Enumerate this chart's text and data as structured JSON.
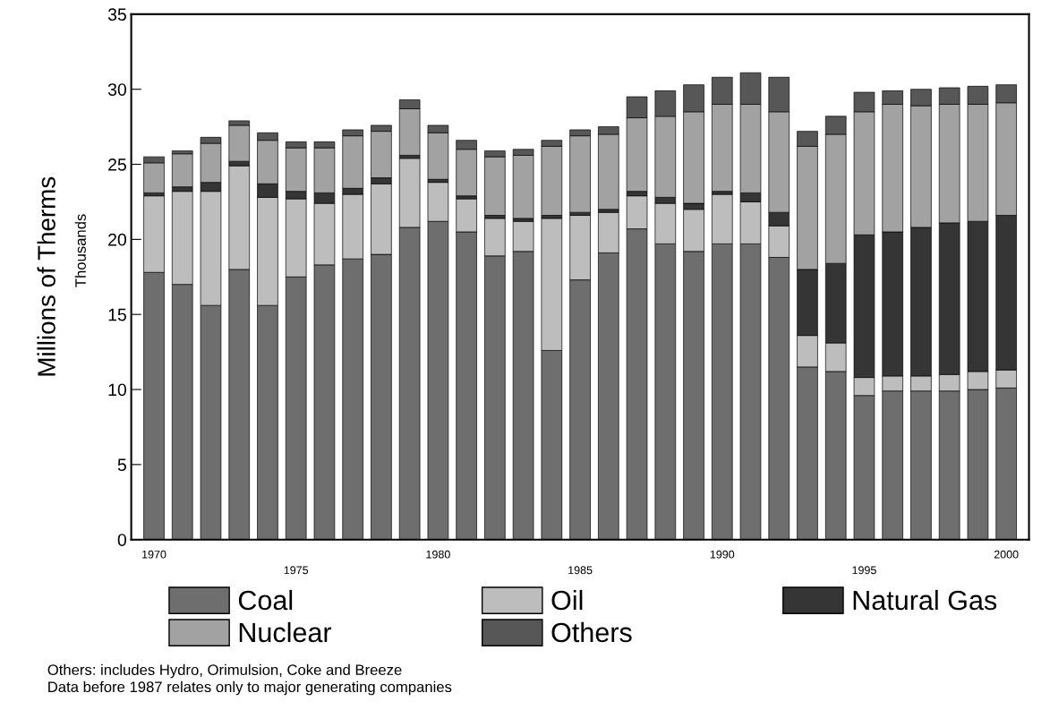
{
  "chart_data": {
    "type": "bar",
    "stacked": true,
    "categories": [
      "1970",
      null,
      null,
      null,
      null,
      "1975",
      null,
      null,
      null,
      null,
      "1980",
      null,
      null,
      null,
      null,
      "1985",
      null,
      null,
      null,
      null,
      "1990",
      null,
      null,
      null,
      null,
      "1995",
      null,
      null,
      null,
      null,
      "2000"
    ],
    "series": [
      {
        "name": "Coal",
        "color": "#6e6e6e",
        "values": [
          17.8,
          17.0,
          15.6,
          18.0,
          15.6,
          17.5,
          18.3,
          18.7,
          19.0,
          20.8,
          21.2,
          20.5,
          18.9,
          19.2,
          12.6,
          17.3,
          19.1,
          20.7,
          19.7,
          19.2,
          19.7,
          19.7,
          18.8,
          11.5,
          11.2,
          9.6,
          9.9,
          9.9,
          9.9,
          10.0,
          10.1
        ]
      },
      {
        "name": "Oil",
        "color": "#bdbdbd",
        "values": [
          5.1,
          6.2,
          7.6,
          6.9,
          7.2,
          5.2,
          4.1,
          4.3,
          4.7,
          4.6,
          2.6,
          2.2,
          2.5,
          2.0,
          8.8,
          4.3,
          2.7,
          2.2,
          2.7,
          2.8,
          3.3,
          2.8,
          2.1,
          2.1,
          1.9,
          1.2,
          1.0,
          1.0,
          1.1,
          1.2,
          1.2
        ]
      },
      {
        "name": "Natural Gas",
        "color": "#353535",
        "values": [
          0.2,
          0.3,
          0.6,
          0.3,
          0.9,
          0.5,
          0.7,
          0.4,
          0.4,
          0.2,
          0.2,
          0.2,
          0.2,
          0.2,
          0.2,
          0.2,
          0.2,
          0.3,
          0.4,
          0.4,
          0.2,
          0.6,
          0.9,
          4.4,
          5.3,
          9.5,
          9.6,
          9.9,
          10.1,
          10.0,
          10.3
        ]
      },
      {
        "name": "Nuclear",
        "color": "#a2a2a2",
        "values": [
          2.0,
          2.2,
          2.6,
          2.4,
          2.9,
          2.9,
          3.0,
          3.5,
          3.1,
          3.1,
          3.1,
          3.1,
          3.9,
          4.2,
          4.6,
          5.1,
          5.0,
          4.9,
          5.4,
          6.1,
          5.8,
          5.9,
          6.7,
          8.2,
          8.6,
          8.2,
          8.5,
          8.1,
          7.9,
          7.8,
          7.5
        ]
      },
      {
        "name": "Others",
        "color": "#575757",
        "values": [
          0.4,
          0.2,
          0.4,
          0.3,
          0.5,
          0.4,
          0.4,
          0.4,
          0.4,
          0.6,
          0.5,
          0.6,
          0.4,
          0.4,
          0.4,
          0.4,
          0.5,
          1.4,
          1.7,
          1.8,
          1.8,
          2.1,
          2.3,
          1.0,
          1.2,
          1.3,
          0.9,
          1.1,
          1.1,
          1.2,
          1.2
        ]
      }
    ],
    "ylabel": "Millions of Therms",
    "ylim": [
      0,
      35
    ],
    "yticks": [
      0,
      5,
      10,
      15,
      20,
      25,
      30,
      35
    ],
    "grid": false,
    "legend": "bottom",
    "annotations": [
      "Thousands",
      "Others: includes Hydro, Orimulsion, Coke and Breeze",
      "Data before 1987 relates only to major generating companies"
    ]
  }
}
